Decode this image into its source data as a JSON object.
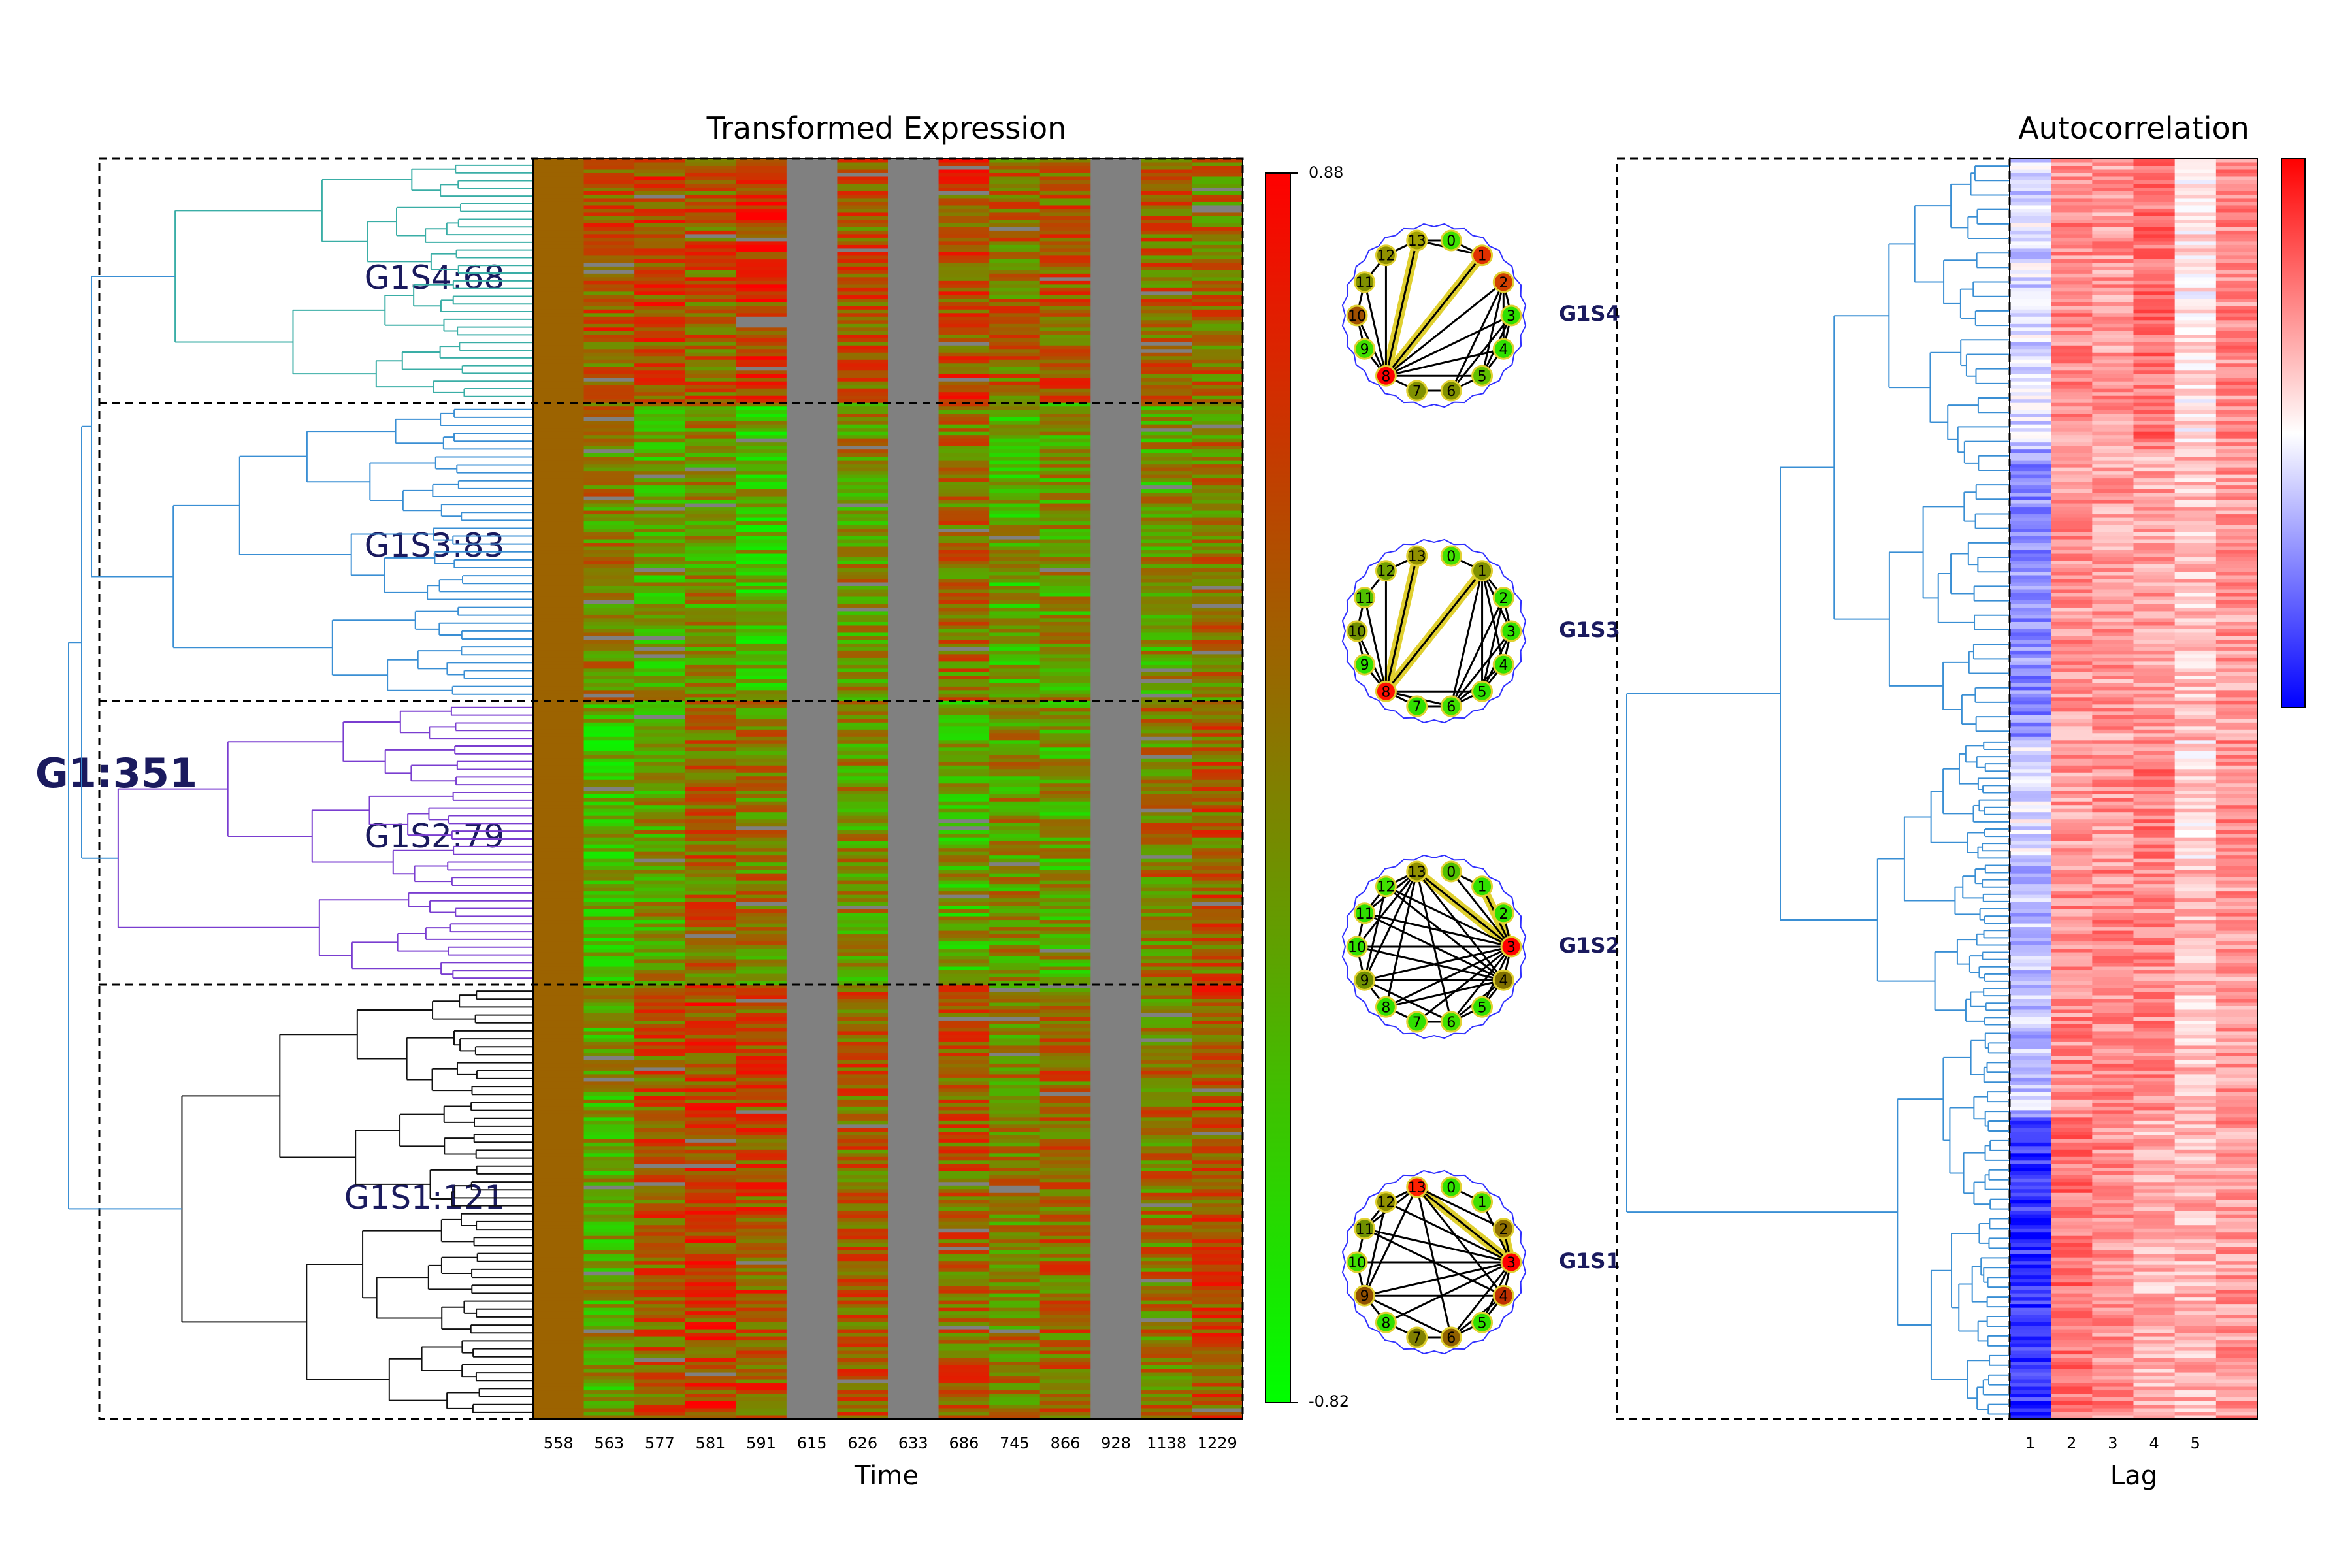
{
  "chart_data": [
    {
      "type": "heatmap",
      "title": "Transformed Expression",
      "xlabel": "Time",
      "ylabel": "",
      "x_ticks": [
        "558",
        "563",
        "577",
        "581",
        "591",
        "615",
        "626",
        "633",
        "686",
        "745",
        "866",
        "928",
        "1138",
        "1229"
      ],
      "n_rows": 351,
      "colorbar": {
        "min_label": "-0.82",
        "max_label": "0.88",
        "min": -0.82,
        "max": 0.88,
        "colors": [
          "#00ff00",
          "#808000",
          "#ff0000"
        ]
      },
      "missing_color": "#808080",
      "dendrogram": {
        "root_label": "G1:351",
        "clusters": [
          {
            "label": "G1S4:68",
            "size": 68,
            "color": "#3aaea6",
            "column_level": [
              0.22,
              0.3,
              0.4,
              0.3,
              0.5,
              null,
              0.28,
              null,
              0.4,
              0.18,
              0.3,
              null,
              0.22,
              0.15
            ]
          },
          {
            "label": "G1S3:83",
            "size": 83,
            "color": "#3a8fd4",
            "column_level": [
              0.22,
              0.0,
              -0.2,
              -0.05,
              -0.3,
              null,
              -0.05,
              null,
              0.12,
              -0.25,
              -0.1,
              null,
              -0.1,
              0.08
            ]
          },
          {
            "label": "G1S2:79",
            "size": 79,
            "color": "#7a3ed0",
            "column_level": [
              0.22,
              -0.3,
              -0.1,
              0.2,
              0.05,
              null,
              -0.05,
              null,
              -0.2,
              -0.05,
              -0.15,
              null,
              0.1,
              0.25
            ]
          },
          {
            "label": "G1S1:121",
            "size": 121,
            "color": "#111111",
            "column_level": [
              0.22,
              -0.15,
              0.3,
              0.45,
              0.35,
              null,
              0.25,
              null,
              0.25,
              0.05,
              0.2,
              null,
              0.15,
              0.35
            ]
          }
        ]
      }
    },
    {
      "type": "network",
      "nodes": [
        "0",
        "1",
        "2",
        "3",
        "4",
        "5",
        "6",
        "7",
        "8",
        "9",
        "10",
        "11",
        "12",
        "13"
      ],
      "graphs": [
        {
          "label": "G1S4",
          "node_color": [
            "#3ee000",
            "#e03000",
            "#d04000",
            "#30e000",
            "#30e000",
            "#60c000",
            "#809000",
            "#809000",
            "#ff0000",
            "#40e000",
            "#a05000",
            "#809000",
            "#909000",
            "#a0a000"
          ],
          "edges": [
            [
              0,
              1
            ],
            [
              1,
              8
            ],
            [
              1,
              13
            ],
            [
              2,
              3
            ],
            [
              2,
              4
            ],
            [
              2,
              5
            ],
            [
              2,
              6
            ],
            [
              2,
              8
            ],
            [
              3,
              4
            ],
            [
              3,
              5
            ],
            [
              3,
              6
            ],
            [
              3,
              8
            ],
            [
              4,
              5
            ],
            [
              4,
              8
            ],
            [
              5,
              6
            ],
            [
              5,
              8
            ],
            [
              6,
              7
            ],
            [
              7,
              8
            ],
            [
              8,
              9
            ],
            [
              8,
              10
            ],
            [
              8,
              11
            ],
            [
              8,
              12
            ],
            [
              8,
              13
            ],
            [
              9,
              10
            ],
            [
              10,
              11
            ],
            [
              11,
              12
            ],
            [
              12,
              13
            ],
            [
              0,
              13
            ]
          ],
          "highlight": [
            [
              1,
              8
            ],
            [
              8,
              13
            ]
          ]
        },
        {
          "label": "G1S3",
          "node_color": [
            "#40e000",
            "#809000",
            "#30e000",
            "#30e000",
            "#30e000",
            "#30e000",
            "#40e000",
            "#30e000",
            "#ff1000",
            "#30e000",
            "#709000",
            "#50c000",
            "#70a000",
            "#909000"
          ],
          "edges": [
            [
              0,
              1
            ],
            [
              1,
              2
            ],
            [
              1,
              3
            ],
            [
              1,
              4
            ],
            [
              1,
              5
            ],
            [
              1,
              6
            ],
            [
              1,
              8
            ],
            [
              2,
              3
            ],
            [
              2,
              5
            ],
            [
              2,
              6
            ],
            [
              3,
              4
            ],
            [
              3,
              5
            ],
            [
              3,
              6
            ],
            [
              4,
              5
            ],
            [
              4,
              6
            ],
            [
              5,
              6
            ],
            [
              5,
              8
            ],
            [
              6,
              7
            ],
            [
              6,
              8
            ],
            [
              7,
              8
            ],
            [
              8,
              9
            ],
            [
              8,
              10
            ],
            [
              8,
              11
            ],
            [
              8,
              12
            ],
            [
              8,
              13
            ],
            [
              9,
              10
            ],
            [
              10,
              11
            ],
            [
              11,
              12
            ],
            [
              12,
              13
            ]
          ],
          "highlight": [
            [
              1,
              8
            ],
            [
              8,
              13
            ]
          ]
        },
        {
          "label": "G1S2",
          "node_color": [
            "#50c000",
            "#30e000",
            "#30e000",
            "#ff0000",
            "#807000",
            "#30e000",
            "#40e000",
            "#30e000",
            "#30e000",
            "#709000",
            "#30e000",
            "#30e000",
            "#40e000",
            "#909000"
          ],
          "edges": [
            [
              0,
              1
            ],
            [
              0,
              3
            ],
            [
              1,
              3
            ],
            [
              2,
              3
            ],
            [
              3,
              4
            ],
            [
              3,
              5
            ],
            [
              3,
              6
            ],
            [
              3,
              7
            ],
            [
              3,
              8
            ],
            [
              3,
              9
            ],
            [
              3,
              10
            ],
            [
              3,
              11
            ],
            [
              3,
              12
            ],
            [
              3,
              13
            ],
            [
              4,
              5
            ],
            [
              4,
              6
            ],
            [
              4,
              8
            ],
            [
              4,
              9
            ],
            [
              4,
              10
            ],
            [
              4,
              11
            ],
            [
              4,
              12
            ],
            [
              4,
              13
            ],
            [
              5,
              6
            ],
            [
              6,
              7
            ],
            [
              6,
              9
            ],
            [
              6,
              13
            ],
            [
              7,
              8
            ],
            [
              8,
              9
            ],
            [
              8,
              13
            ],
            [
              9,
              10
            ],
            [
              9,
              12
            ],
            [
              9,
              13
            ],
            [
              10,
              11
            ],
            [
              10,
              13
            ],
            [
              11,
              12
            ],
            [
              11,
              13
            ],
            [
              12,
              13
            ]
          ],
          "highlight": [
            [
              3,
              13
            ],
            [
              1,
              3
            ]
          ]
        },
        {
          "label": "G1S1",
          "node_color": [
            "#30e000",
            "#40e000",
            "#907000",
            "#ff0000",
            "#c03000",
            "#30e000",
            "#906000",
            "#808000",
            "#30e000",
            "#905000",
            "#40e000",
            "#709000",
            "#909000",
            "#ff2000"
          ],
          "edges": [
            [
              0,
              1
            ],
            [
              1,
              3
            ],
            [
              2,
              3
            ],
            [
              2,
              13
            ],
            [
              3,
              4
            ],
            [
              3,
              5
            ],
            [
              3,
              6
            ],
            [
              3,
              8
            ],
            [
              3,
              9
            ],
            [
              3,
              10
            ],
            [
              3,
              11
            ],
            [
              3,
              12
            ],
            [
              3,
              13
            ],
            [
              4,
              5
            ],
            [
              4,
              6
            ],
            [
              4,
              9
            ],
            [
              4,
              11
            ],
            [
              4,
              13
            ],
            [
              5,
              6
            ],
            [
              6,
              7
            ],
            [
              6,
              9
            ],
            [
              6,
              13
            ],
            [
              7,
              8
            ],
            [
              8,
              9
            ],
            [
              9,
              10
            ],
            [
              9,
              12
            ],
            [
              9,
              13
            ],
            [
              10,
              11
            ],
            [
              11,
              12
            ],
            [
              11,
              13
            ],
            [
              12,
              13
            ]
          ],
          "highlight": [
            [
              3,
              13
            ],
            [
              2,
              3
            ]
          ]
        }
      ]
    },
    {
      "type": "heatmap",
      "title": "Autocorrelation",
      "xlabel": "Lag",
      "x_ticks": [
        "1",
        "2",
        "3",
        "4",
        "5"
      ],
      "n_cols": 6,
      "colorbar": {
        "colors": [
          "#0000ff",
          "#ffffff",
          "#ff0000"
        ]
      },
      "dendrogram_color": "#3a8fd4",
      "band_values": [
        {
          "rows": [
            0,
            0.23
          ],
          "lags": [
            -0.15,
            0.45,
            0.4,
            0.55,
            0.1,
            0.45
          ]
        },
        {
          "rows": [
            0.23,
            0.46
          ],
          "lags": [
            -0.45,
            0.4,
            0.38,
            0.35,
            0.25,
            0.4
          ]
        },
        {
          "rows": [
            0.46,
            0.56
          ],
          "lags": [
            -0.1,
            0.4,
            0.42,
            0.5,
            0.15,
            0.45
          ]
        },
        {
          "rows": [
            0.56,
            0.76
          ],
          "lags": [
            -0.25,
            0.45,
            0.45,
            0.45,
            0.25,
            0.4
          ]
        },
        {
          "rows": [
            0.76,
            1.0
          ],
          "lags": [
            -0.8,
            0.55,
            0.45,
            0.3,
            0.3,
            0.4
          ]
        }
      ]
    }
  ]
}
